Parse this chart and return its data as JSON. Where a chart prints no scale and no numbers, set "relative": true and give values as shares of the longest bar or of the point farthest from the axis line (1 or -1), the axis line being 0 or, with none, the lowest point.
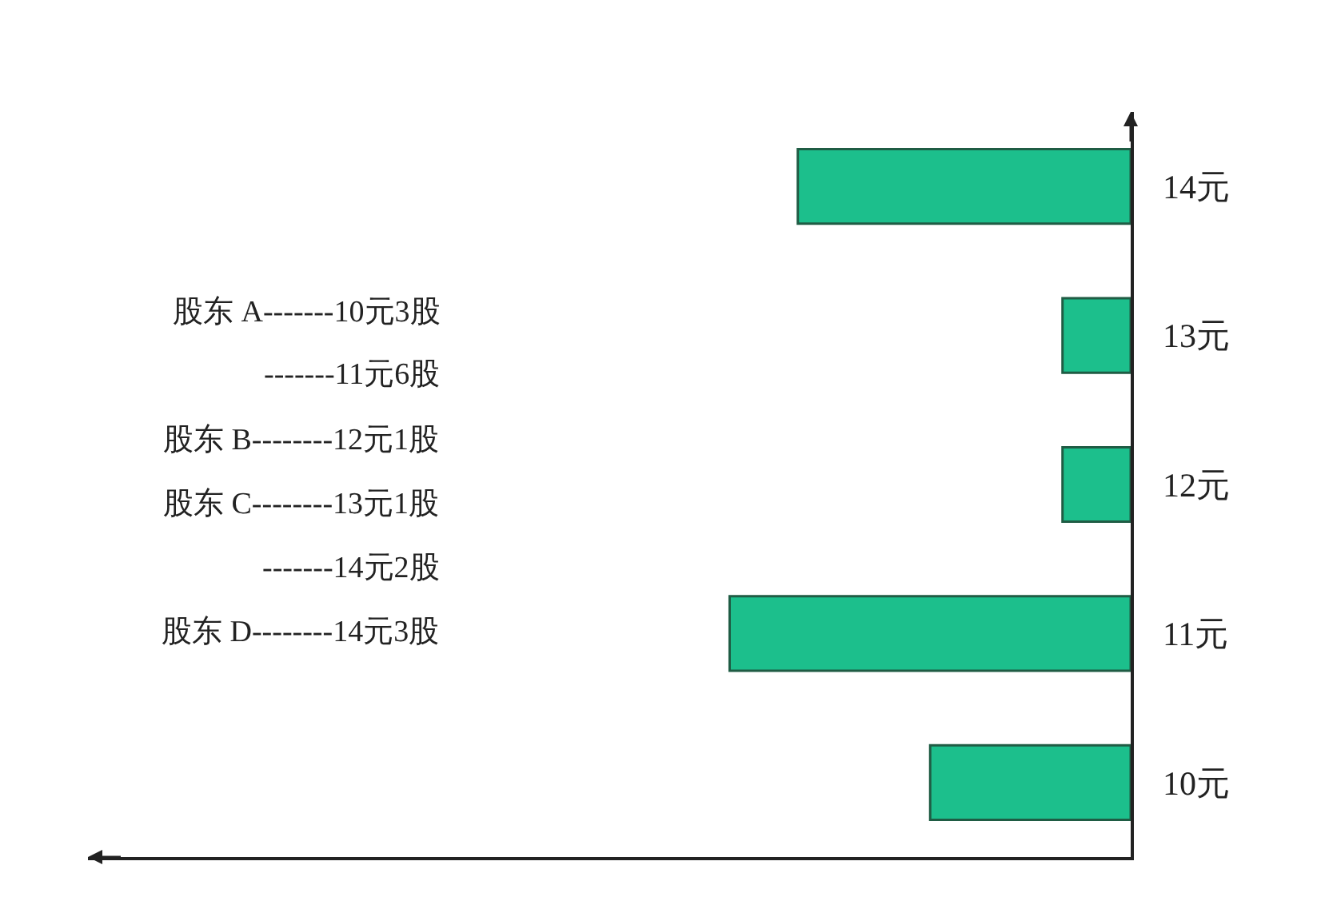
{
  "chart_data": {
    "type": "bar",
    "orientation": "horizontal",
    "relative": true,
    "categories": [
      "14元",
      "13元",
      "12元",
      "11元",
      "10元"
    ],
    "values": [
      0.83,
      0.17,
      0.17,
      1,
      0.5
    ],
    "color": "#1cbf8c",
    "annotations": [
      "股东 A-------10元3股",
      "-------11元6股",
      "股东 B--------12元1股",
      "股东 C--------13元1股",
      "-------14元2股",
      "股东 D--------14元3股"
    ]
  }
}
